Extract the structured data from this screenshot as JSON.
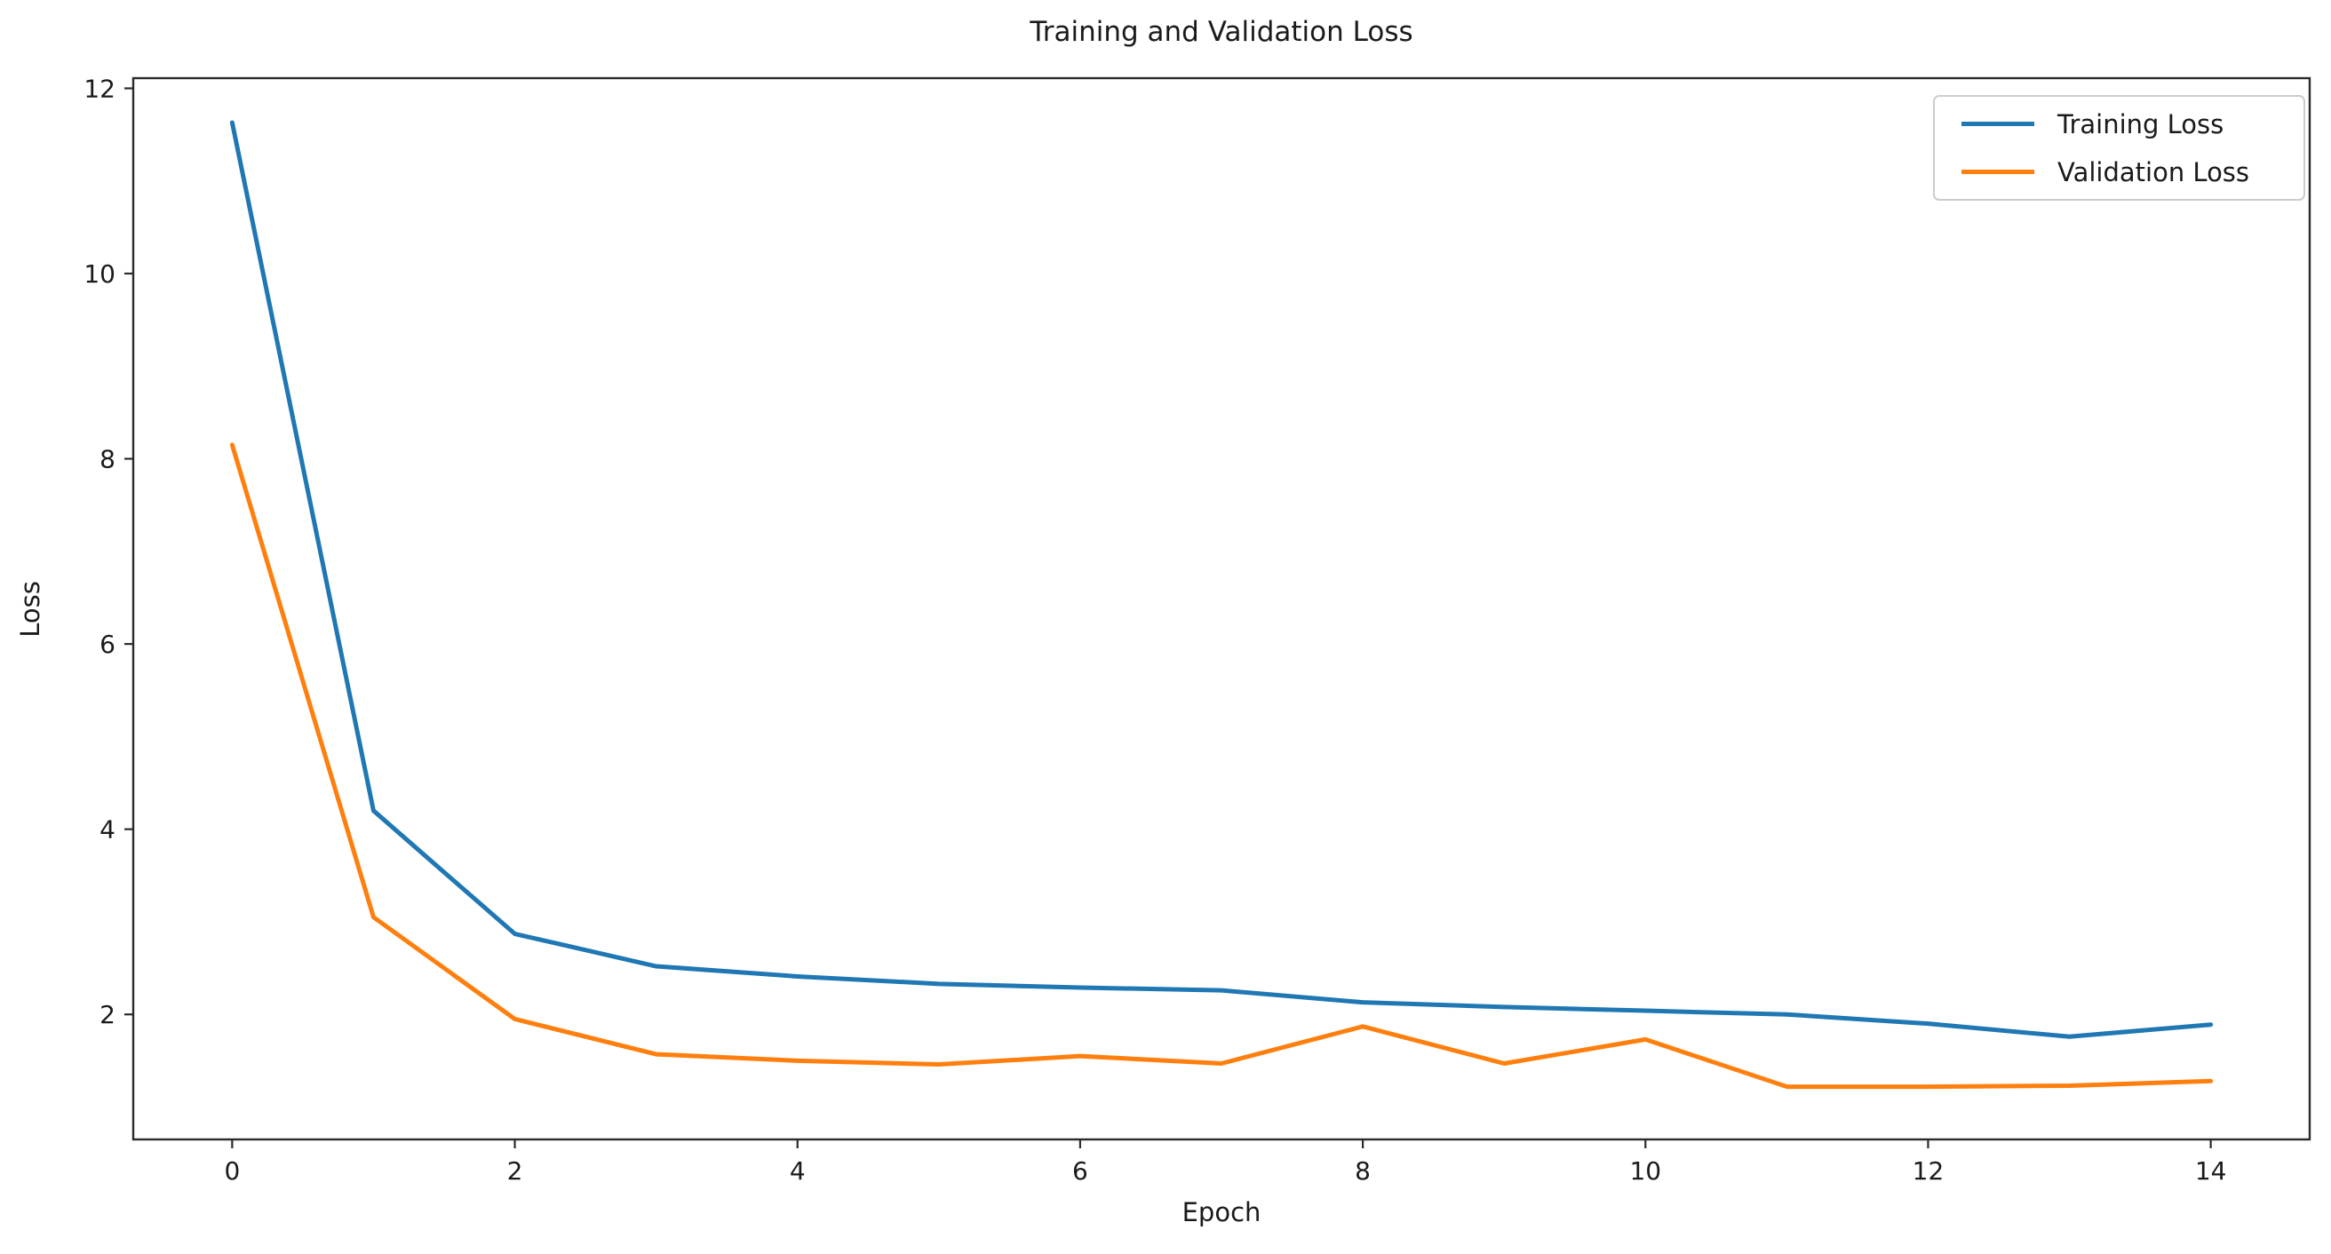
{
  "chart_data": {
    "type": "line",
    "title": "Training and Validation Loss",
    "xlabel": "Epoch",
    "ylabel": "Loss",
    "x": [
      0,
      1,
      2,
      3,
      4,
      5,
      6,
      7,
      8,
      9,
      10,
      11,
      12,
      13,
      14
    ],
    "series": [
      {
        "name": "Training Loss",
        "color": "#1f77b4",
        "values": [
          11.63,
          4.2,
          2.87,
          2.52,
          2.41,
          2.33,
          2.29,
          2.26,
          2.13,
          2.08,
          2.04,
          2.0,
          1.9,
          1.76,
          1.89
        ]
      },
      {
        "name": "Validation Loss",
        "color": "#ff7f0e",
        "values": [
          8.15,
          3.05,
          1.95,
          1.57,
          1.5,
          1.46,
          1.55,
          1.47,
          1.87,
          1.47,
          1.73,
          1.22,
          1.22,
          1.23,
          1.28
        ]
      }
    ],
    "xticks": [
      0,
      2,
      4,
      6,
      8,
      10,
      12,
      14
    ],
    "yticks": [
      2,
      4,
      6,
      8,
      10,
      12
    ],
    "xlim": [
      -0.7,
      14.7
    ],
    "ylim": [
      0.65,
      12.11
    ],
    "grid": false,
    "legend_position": "upper right",
    "axis_color": "#2b2b2b",
    "text_color": "#1a1a1a"
  }
}
